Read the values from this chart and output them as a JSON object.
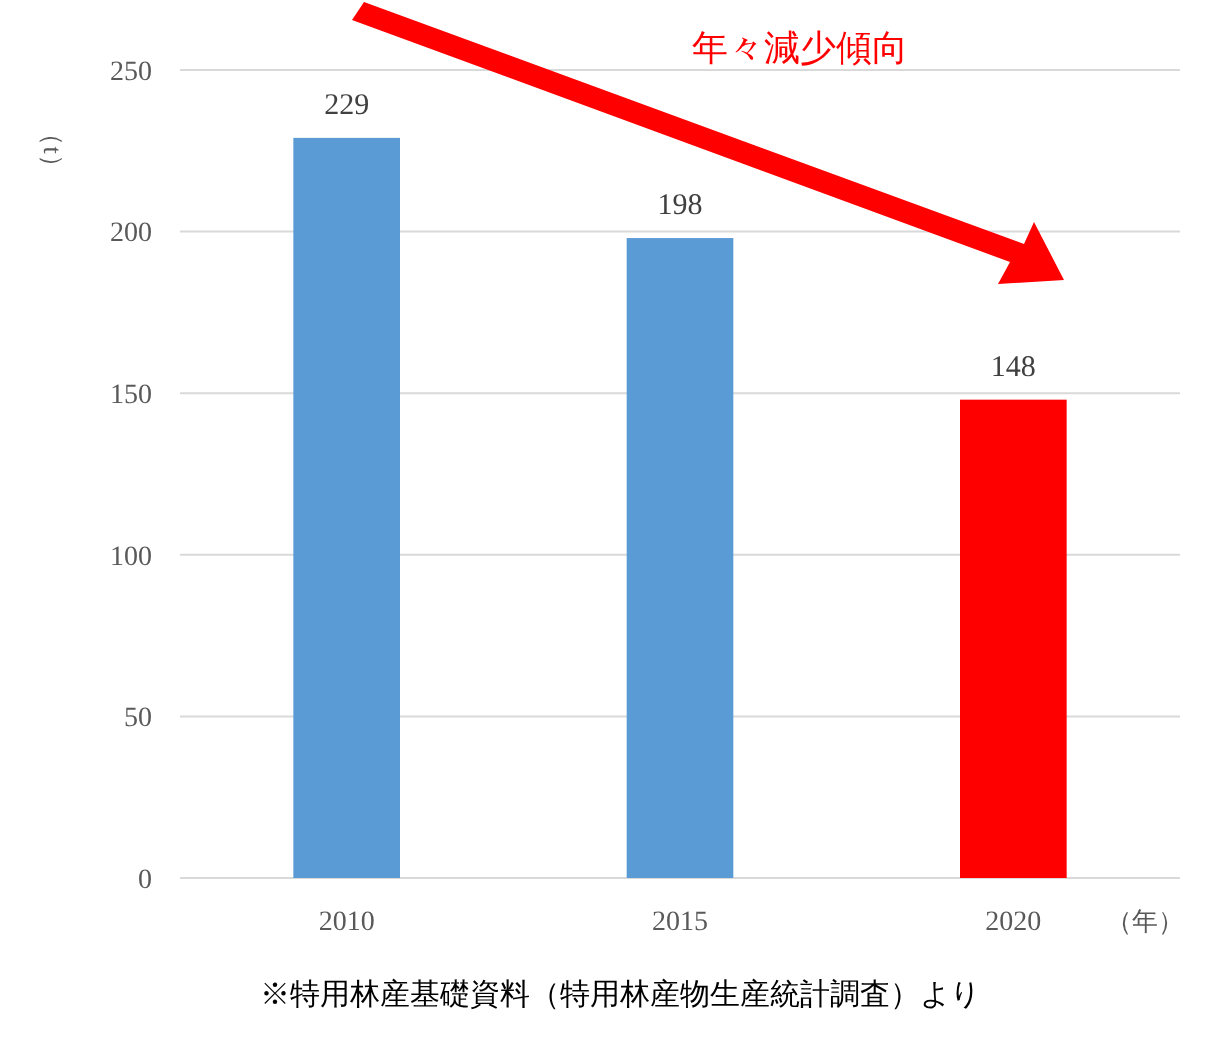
{
  "chart_data": {
    "type": "bar",
    "categories": [
      "2010",
      "2015",
      "2020"
    ],
    "values": [
      229,
      198,
      148
    ],
    "colors": [
      "#5b9bd5",
      "#5b9bd5",
      "#ff0000"
    ],
    "ylim": [
      0,
      250
    ],
    "yticks": [
      0,
      50,
      100,
      150,
      200,
      250
    ],
    "grid": "y",
    "data_labels": true,
    "xlabel": "（年）",
    "ylabel": "（t）",
    "annotations": [
      "年々減少傾向",
      "※特用林産基礎資料（特用林産物生産統計調査）より"
    ]
  }
}
